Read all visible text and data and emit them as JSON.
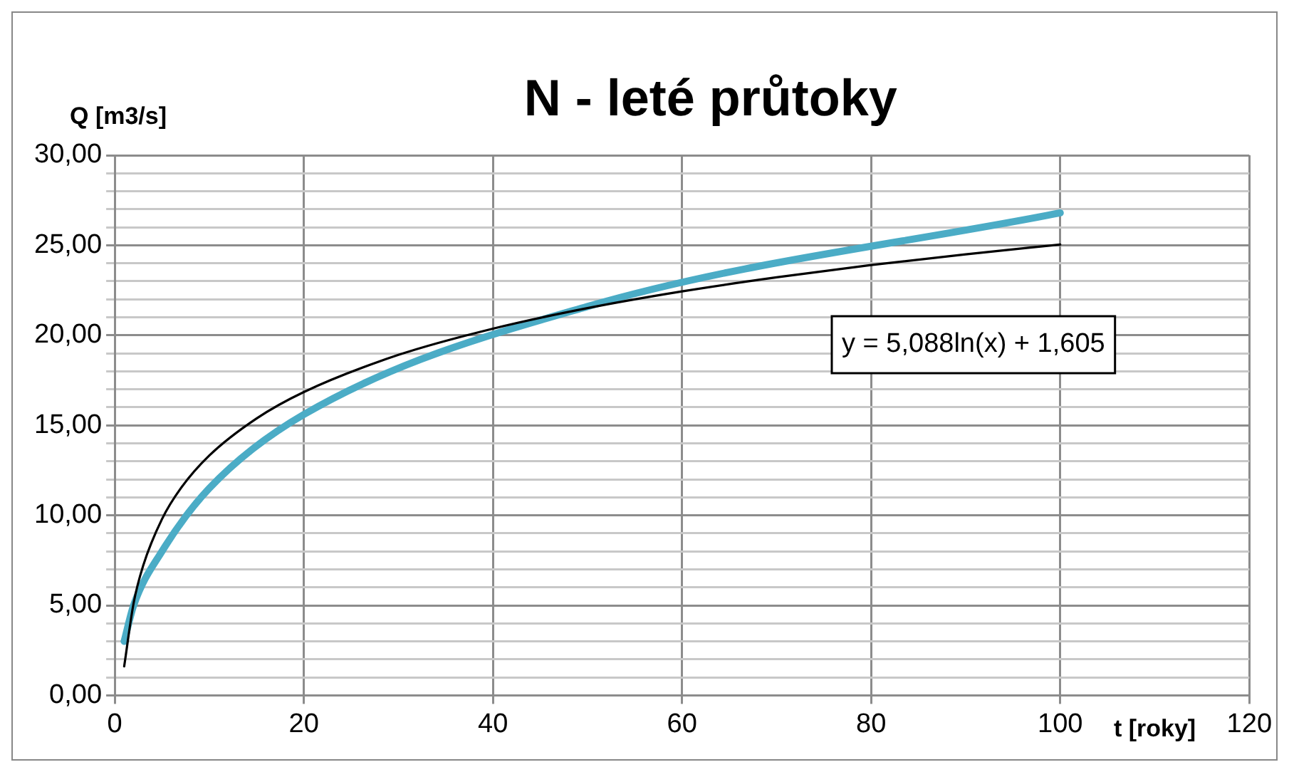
{
  "chart_data": {
    "type": "line",
    "title": "N - leté průtoky",
    "xlabel": "t [roky]",
    "ylabel": "Q [m3/s]",
    "x": [
      1,
      2,
      5,
      10,
      20,
      50,
      100
    ],
    "series": [
      {
        "color": "#4bacc6",
        "values": [
          3.0,
          5.0,
          8.0,
          11.5,
          15.6,
          21.6,
          26.8
        ]
      },
      {
        "type": "line",
        "color": "#000000",
        "x": [
          1,
          2,
          3,
          5,
          7,
          10,
          15,
          20,
          30,
          40,
          50,
          60,
          70,
          80,
          90,
          100
        ],
        "values": [
          1.61,
          5.13,
          7.19,
          9.79,
          11.51,
          13.32,
          15.38,
          16.85,
          18.91,
          20.37,
          21.51,
          22.44,
          23.22,
          23.9,
          24.5,
          25.04
        ]
      }
    ],
    "xlim": [
      0,
      120
    ],
    "xticks": [
      0,
      20,
      40,
      60,
      80,
      100,
      120
    ],
    "ylim": [
      0,
      30
    ],
    "yticks": [
      {
        "value": 0,
        "label": "0,00"
      },
      {
        "value": 1,
        "label": null
      },
      {
        "value": 2,
        "label": null
      },
      {
        "value": 3,
        "label": null
      },
      {
        "value": 4,
        "label": null
      },
      {
        "value": 5,
        "label": "5,00"
      },
      {
        "value": 6,
        "label": null
      },
      {
        "value": 7,
        "label": null
      },
      {
        "value": 8,
        "label": null
      },
      {
        "value": 9,
        "label": null
      },
      {
        "value": 10,
        "label": "10,00"
      },
      {
        "value": 11,
        "label": null
      },
      {
        "value": 12,
        "label": null
      },
      {
        "value": 13,
        "label": null
      },
      {
        "value": 14,
        "label": null
      },
      {
        "value": 15,
        "label": "15,00"
      },
      {
        "value": 16,
        "label": null
      },
      {
        "value": 17,
        "label": null
      },
      {
        "value": 18,
        "label": null
      },
      {
        "value": 19,
        "label": null
      },
      {
        "value": 20,
        "label": "20,00"
      },
      {
        "value": 21,
        "label": null
      },
      {
        "value": 22,
        "label": null
      },
      {
        "value": 23,
        "label": null
      },
      {
        "value": 24,
        "label": null
      },
      {
        "value": 25,
        "label": "25,00"
      },
      {
        "value": 26,
        "label": null
      },
      {
        "value": 27,
        "label": null
      },
      {
        "value": 28,
        "label": null
      },
      {
        "value": 29,
        "label": null
      },
      {
        "value": 30,
        "label": "30,00"
      }
    ],
    "grid": true,
    "marker": "none",
    "line_style": "solid",
    "annotations": [
      "y = 5,088ln(x) + 1,605"
    ]
  }
}
